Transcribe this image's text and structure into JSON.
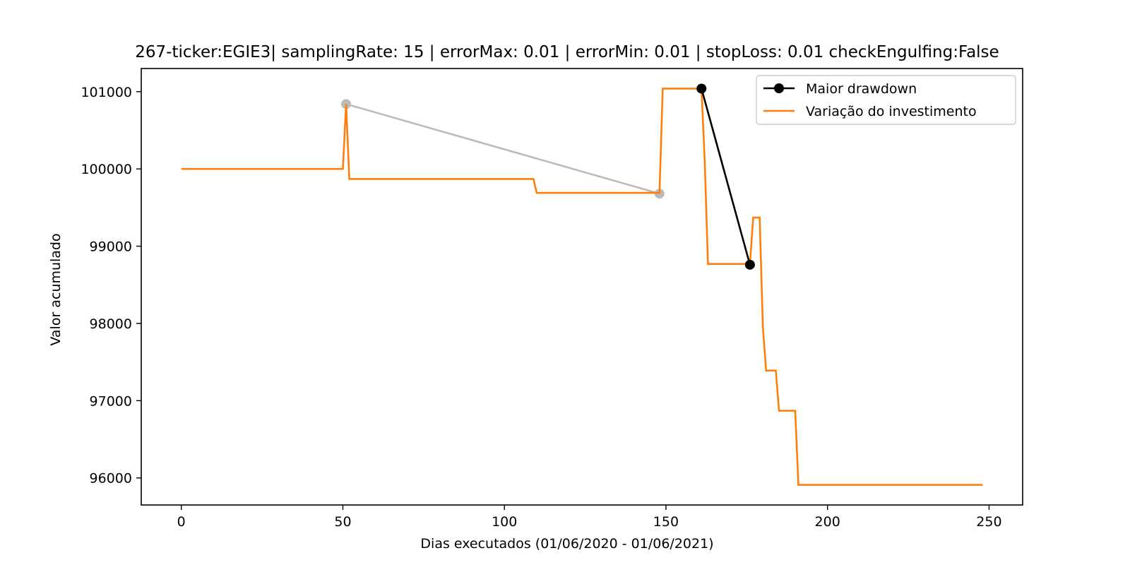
{
  "chart_data": {
    "type": "line",
    "title": "267-ticker:EGIE3| samplingRate: 15 | errorMax: 0.01 | errorMin: 0.01 | stopLoss: 0.01 checkEngulfing:False",
    "xlabel": "Dias executados (01/06/2020 - 01/06/2021)",
    "ylabel": "Valor acumulado",
    "xlim": [
      -12.4,
      260.4
    ],
    "ylim": [
      95650,
      101300
    ],
    "xticks": [
      0,
      50,
      100,
      150,
      200,
      250
    ],
    "yticks": [
      96000,
      97000,
      98000,
      99000,
      100000,
      101000
    ],
    "grid": false,
    "legend_position": "top-right",
    "series": [
      {
        "name": "Maior drawdown",
        "color": "#000000",
        "marker": "circle",
        "x": [
          161,
          176
        ],
        "y": [
          101040,
          98760
        ]
      },
      {
        "name": "Variação do investimento",
        "color": "#ff7f0e",
        "x": [
          0,
          50,
          51,
          52,
          109,
          110,
          148,
          149,
          161,
          162,
          163,
          176,
          177,
          178,
          179,
          180,
          181,
          184,
          185,
          190,
          191,
          248
        ],
        "y": [
          100000,
          100000,
          100840,
          99870,
          99870,
          99690,
          99690,
          101040,
          101040,
          100100,
          98770,
          98770,
          99370,
          99370,
          99370,
          97950,
          97390,
          97390,
          96870,
          96870,
          95910,
          95910
        ]
      }
    ],
    "extra_lines": [
      {
        "color": "#bbbbbb",
        "marker": "circle",
        "x": [
          51,
          148
        ],
        "y": [
          100840,
          99680
        ]
      }
    ]
  }
}
